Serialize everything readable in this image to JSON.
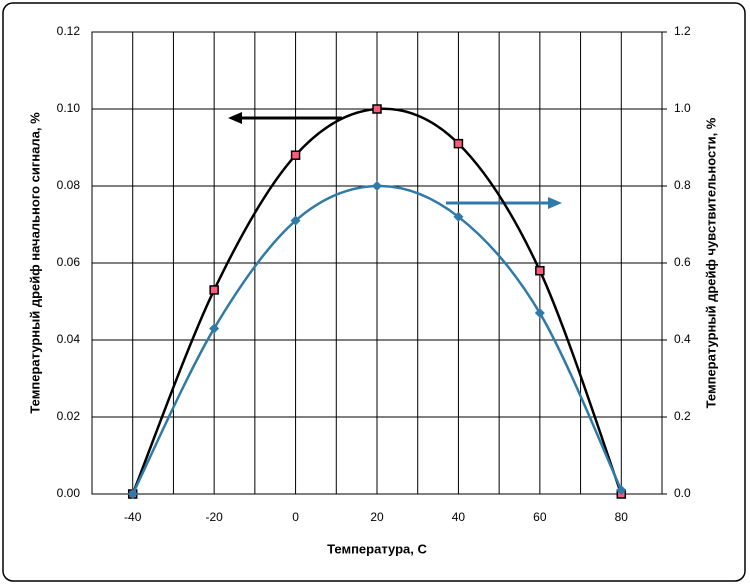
{
  "chart_data": {
    "type": "line",
    "xlabel": "Температура, С",
    "ylabel": "Температурный дрейф начального сигнала, %",
    "y2label": "Температурный дрейф чувствительности, %",
    "x": [
      -40,
      -20,
      0,
      20,
      40,
      60,
      80
    ],
    "xlim": [
      -50,
      90
    ],
    "xticks": [
      -40,
      -20,
      0,
      20,
      40,
      60,
      80
    ],
    "xgrid": [
      -30,
      -10,
      10,
      30,
      50,
      70
    ],
    "ylim": [
      0,
      0.12
    ],
    "yticks": [
      {
        "value": 0,
        "label": "0.00"
      },
      {
        "value": 0.02,
        "label": "0.02"
      },
      {
        "value": 0.04,
        "label": "0.04"
      },
      {
        "value": 0.06,
        "label": "0.06"
      },
      {
        "value": 0.08,
        "label": "0.08"
      },
      {
        "value": 0.1,
        "label": "0.10"
      },
      {
        "value": 0.12,
        "label": "0.12"
      }
    ],
    "y2lim": [
      0,
      1.2
    ],
    "y2ticks": [
      {
        "value": 0,
        "label": "0.0"
      },
      0.2,
      0.4,
      0.6,
      0.8,
      {
        "value": 1,
        "label": "1.0"
      },
      1.2
    ],
    "grid": true,
    "series": [
      {
        "color": "#000000",
        "marker_color": "#ff5a7a",
        "marker": "square",
        "values": [
          0,
          0.053,
          0.088,
          0.1,
          0.091,
          0.058,
          0
        ]
      },
      {
        "color": "#2f7aa8",
        "marker_color": "#2f7aa8",
        "marker": "diamond",
        "axis": "y2",
        "values": [
          0,
          0.43,
          0.71,
          0.8,
          0.72,
          0.47,
          0.01
        ]
      }
    ]
  }
}
